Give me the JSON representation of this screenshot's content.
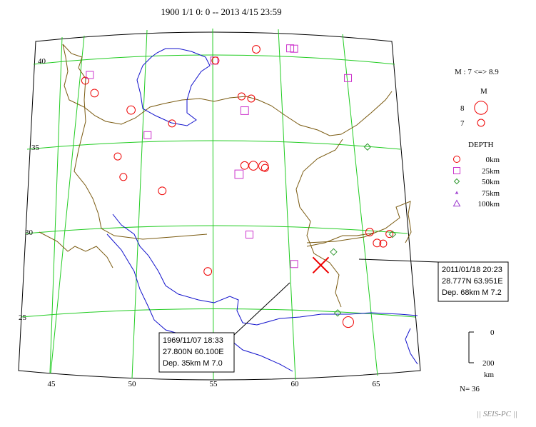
{
  "title": "1900 1/1 0: 0 -- 2013 4/15 23:59",
  "colors": {
    "graticule": "#22cc22",
    "border": "#7a5a10",
    "river": "#1111cc",
    "event": "#ee0000",
    "depth25": "#cc33cc",
    "depth50": "#339933",
    "depth100": "#9933cc",
    "highlight": "#ee0000"
  },
  "axes": {
    "lon_labels": [
      "45",
      "50",
      "55",
      "60",
      "65"
    ],
    "lat_labels": [
      "40",
      "35",
      "30",
      "25"
    ]
  },
  "legend": {
    "magnitude_range": "M : 7 <=> 8.9",
    "magnitude_title": "M",
    "magnitude_items": [
      {
        "label": "8",
        "magnitude": 8
      },
      {
        "label": "7",
        "magnitude": 7
      }
    ],
    "depth_title": "DEPTH",
    "depth_items": [
      {
        "label": "0km",
        "symbol": "circle"
      },
      {
        "label": "25km",
        "symbol": "square"
      },
      {
        "label": "50km",
        "symbol": "diamond"
      },
      {
        "label": "75km",
        "symbol": "triangle"
      },
      {
        "label": "100km",
        "symbol": "triangle"
      }
    ],
    "depth_scale": {
      "top": "0",
      "bottom": "200",
      "unit": "km"
    },
    "count": "N= 36"
  },
  "callouts": [
    {
      "date": "2011/01/18 20:23",
      "coords": "28.777N  63.951E",
      "depth_mag": "Dep. 68km   M 7.2"
    },
    {
      "date": "1969/11/07 18:33",
      "coords": "27.800N  60.100E",
      "depth_mag": "Dep. 35km   M 7.0"
    }
  ],
  "footer": "|| SEIS-PC ||",
  "events": [
    {
      "lon": 45.4,
      "lat": 38.6,
      "symbol": "circle",
      "m": 7.0
    },
    {
      "lon": 45.7,
      "lat": 38.9,
      "symbol": "square",
      "m": 7.0
    },
    {
      "lon": 46.2,
      "lat": 37.8,
      "symbol": "circle",
      "m": 7.1
    },
    {
      "lon": 49.0,
      "lat": 36.6,
      "symbol": "circle",
      "m": 7.2
    },
    {
      "lon": 50.3,
      "lat": 35.1,
      "symbol": "square",
      "m": 7.0
    },
    {
      "lon": 52.0,
      "lat": 35.7,
      "symbol": "circle",
      "m": 7.0
    },
    {
      "lon": 55.0,
      "lat": 39.2,
      "symbol": "square",
      "m": 7.0
    },
    {
      "lon": 55.1,
      "lat": 39.2,
      "symbol": "circle",
      "m": 7.0
    },
    {
      "lon": 58.2,
      "lat": 39.9,
      "symbol": "circle",
      "m": 7.1
    },
    {
      "lon": 60.8,
      "lat": 40.1,
      "symbol": "square",
      "m": 7.0
    },
    {
      "lon": 61.1,
      "lat": 40.1,
      "symbol": "square",
      "m": 7.0
    },
    {
      "lon": 65.0,
      "lat": 38.8,
      "symbol": "square",
      "m": 7.0
    },
    {
      "lon": 57.0,
      "lat": 37.2,
      "symbol": "circle",
      "m": 7.0
    },
    {
      "lon": 57.7,
      "lat": 37.1,
      "symbol": "circle",
      "m": 7.0
    },
    {
      "lon": 57.2,
      "lat": 36.4,
      "symbol": "square",
      "m": 7.1
    },
    {
      "lon": 48.3,
      "lat": 34.0,
      "symbol": "circle",
      "m": 7.0
    },
    {
      "lon": 48.8,
      "lat": 32.8,
      "symbol": "circle",
      "m": 7.0
    },
    {
      "lon": 51.5,
      "lat": 31.9,
      "symbol": "circle",
      "m": 7.1
    },
    {
      "lon": 56.7,
      "lat": 32.8,
      "symbol": "square",
      "m": 7.2
    },
    {
      "lon": 57.1,
      "lat": 33.3,
      "symbol": "circle",
      "m": 7.1
    },
    {
      "lon": 57.7,
      "lat": 33.3,
      "symbol": "circle",
      "m": 7.3
    },
    {
      "lon": 58.4,
      "lat": 33.3,
      "symbol": "circle",
      "m": 7.4
    },
    {
      "lon": 58.5,
      "lat": 33.2,
      "symbol": "circle",
      "m": 7.0
    },
    {
      "lon": 57.3,
      "lat": 29.4,
      "symbol": "square",
      "m": 7.0
    },
    {
      "lon": 54.6,
      "lat": 27.3,
      "symbol": "circle",
      "m": 7.1
    },
    {
      "lon": 60.1,
      "lat": 27.8,
      "symbol": "square",
      "m": 7.0
    },
    {
      "lon": 65.2,
      "lat": 29.9,
      "symbol": "circle",
      "m": 7.1
    },
    {
      "lon": 65.6,
      "lat": 29.3,
      "symbol": "circle",
      "m": 7.1
    },
    {
      "lon": 66.0,
      "lat": 29.3,
      "symbol": "circle",
      "m": 7.0
    },
    {
      "lon": 66.5,
      "lat": 29.9,
      "symbol": "circle",
      "m": 7.0
    },
    {
      "lon": 66.7,
      "lat": 29.9,
      "symbol": "diamond",
      "m": 7.0
    },
    {
      "lon": 65.8,
      "lat": 34.9,
      "symbol": "diamond",
      "m": 7.0
    },
    {
      "lon": 62.7,
      "lat": 28.6,
      "symbol": "diamond",
      "m": 7.2
    },
    {
      "lon": 62.6,
      "lat": 25.1,
      "symbol": "diamond",
      "m": 7.0
    },
    {
      "lon": 63.2,
      "lat": 24.6,
      "symbol": "circle",
      "m": 7.6
    },
    {
      "lon": 61.8,
      "lat": 27.8,
      "symbol": "cross",
      "m": 7.5
    }
  ]
}
